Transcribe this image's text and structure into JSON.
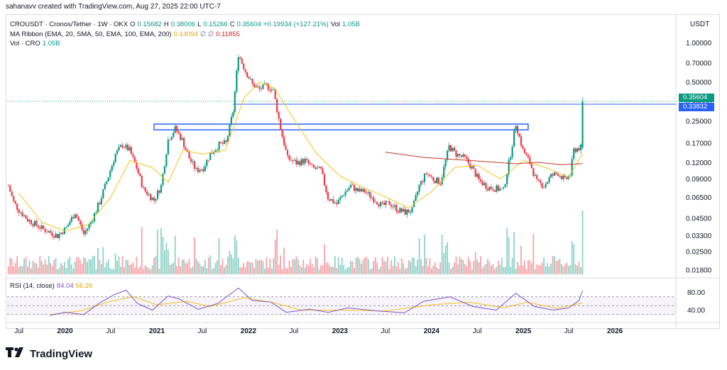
{
  "header": {
    "created_text": "sahanavv created with TradingView.com, Aug 27, 2025 22:00 UTC-7"
  },
  "legend": {
    "symbol": "CROUSDT · Cronos/Tether · 1W · OKX",
    "o_label": "O",
    "o_value": "0.15682",
    "h_label": "H",
    "h_value": "0.38006",
    "l_label": "L",
    "l_value": "0.15266",
    "c_label": "C",
    "c_value": "0.35604",
    "change": "+0.19934 (+127.21%)",
    "vol_label": "Vol",
    "vol_value": "1.05B",
    "ma_label": "MA Ribbon (EMA, 20, SMA, 50, EMA, 100, EMA, 200)",
    "ma_v1": "0.14094",
    "ma_sym": "∅ ∅",
    "ma_v2": "0.11855",
    "vol2_label": "Vol · CRO",
    "vol2_value": "1.05B",
    "rsi_label": "RSI (14, close)",
    "rsi_value": "84.04",
    "rsi_ma_value": "56.26"
  },
  "axis": {
    "currency": "USDT",
    "price_ticks": [
      "1.00000",
      "0.70000",
      "0.50000",
      "0.35000",
      "0.25000",
      "0.17000",
      "0.12000",
      "0.09000",
      "0.06500",
      "0.04500",
      "0.03300",
      "0.02500",
      "0.01800"
    ],
    "rsi_ticks": [
      "80.00",
      "40.00"
    ],
    "x_ticks": [
      "Jul",
      "2020",
      "Jul",
      "2021",
      "Jul",
      "2022",
      "Jul",
      "2023",
      "Jul",
      "2024",
      "Jul",
      "2025",
      "Jul",
      "2026"
    ],
    "last_price": "0.35604",
    "level_price": "0.33832"
  },
  "colors": {
    "up": "#089981",
    "down": "#f23645",
    "vol_up": "#8fd3c7",
    "vol_down": "#f5a3a9",
    "ma20": "#f0c419",
    "ma_red": "#c0392b",
    "level": "#2962ff",
    "rsi": "#7e57c2",
    "rsi_ma": "#f0c419"
  },
  "chart_data": {
    "type": "candlestick",
    "symbol": "CROUSDT",
    "exchange": "OKX",
    "interval": "1W",
    "y_scale": "log",
    "ylim": [
      0.0165,
      1.2
    ],
    "xlim": [
      "2019-05-15",
      "2026-09-01"
    ],
    "last_bar": {
      "date": "2025-08-25",
      "open": 0.15682,
      "high": 0.38006,
      "low": 0.15266,
      "close": 0.35604,
      "volume": "1.05B"
    },
    "close_path": [
      [
        "2019-05-20",
        0.08
      ],
      [
        "2019-06-10",
        0.06
      ],
      [
        "2019-07-01",
        0.052
      ],
      [
        "2019-08-05",
        0.044
      ],
      [
        "2019-09-09",
        0.04
      ],
      [
        "2019-10-07",
        0.037
      ],
      [
        "2019-11-04",
        0.035
      ],
      [
        "2019-12-02",
        0.033
      ],
      [
        "2020-01-06",
        0.038
      ],
      [
        "2020-02-10",
        0.05
      ],
      [
        "2020-03-16",
        0.034
      ],
      [
        "2020-04-13",
        0.042
      ],
      [
        "2020-05-18",
        0.06
      ],
      [
        "2020-06-22",
        0.095
      ],
      [
        "2020-07-20",
        0.14
      ],
      [
        "2020-08-17",
        0.165
      ],
      [
        "2020-09-14",
        0.15
      ],
      [
        "2020-10-12",
        0.11
      ],
      [
        "2020-11-09",
        0.075
      ],
      [
        "2020-12-21",
        0.062
      ],
      [
        "2021-01-18",
        0.08
      ],
      [
        "2021-02-15",
        0.18
      ],
      [
        "2021-03-15",
        0.22
      ],
      [
        "2021-04-12",
        0.18
      ],
      [
        "2021-05-10",
        0.13
      ],
      [
        "2021-06-07",
        0.105
      ],
      [
        "2021-07-05",
        0.11
      ],
      [
        "2021-08-02",
        0.14
      ],
      [
        "2021-09-06",
        0.165
      ],
      [
        "2021-10-04",
        0.17
      ],
      [
        "2021-11-01",
        0.3
      ],
      [
        "2021-11-22",
        0.82
      ],
      [
        "2021-12-20",
        0.61
      ],
      [
        "2022-01-17",
        0.48
      ],
      [
        "2022-02-14",
        0.44
      ],
      [
        "2022-03-14",
        0.47
      ],
      [
        "2022-04-11",
        0.43
      ],
      [
        "2022-05-09",
        0.22
      ],
      [
        "2022-06-06",
        0.13
      ],
      [
        "2022-07-11",
        0.12
      ],
      [
        "2022-08-15",
        0.125
      ],
      [
        "2022-09-12",
        0.11
      ],
      [
        "2022-10-17",
        0.105
      ],
      [
        "2022-11-14",
        0.065
      ],
      [
        "2022-12-19",
        0.058
      ],
      [
        "2023-01-16",
        0.07
      ],
      [
        "2023-02-13",
        0.08
      ],
      [
        "2023-03-13",
        0.073
      ],
      [
        "2023-04-10",
        0.072
      ],
      [
        "2023-05-15",
        0.064
      ],
      [
        "2023-06-19",
        0.056
      ],
      [
        "2023-07-17",
        0.059
      ],
      [
        "2023-08-21",
        0.052
      ],
      [
        "2023-09-18",
        0.05
      ],
      [
        "2023-10-16",
        0.052
      ],
      [
        "2023-11-13",
        0.08
      ],
      [
        "2023-12-11",
        0.1
      ],
      [
        "2024-01-08",
        0.09
      ],
      [
        "2024-02-05",
        0.085
      ],
      [
        "2024-03-11",
        0.16
      ],
      [
        "2024-04-08",
        0.14
      ],
      [
        "2024-05-13",
        0.13
      ],
      [
        "2024-06-10",
        0.11
      ],
      [
        "2024-07-08",
        0.088
      ],
      [
        "2024-08-12",
        0.078
      ],
      [
        "2024-09-16",
        0.076
      ],
      [
        "2024-10-14",
        0.074
      ],
      [
        "2024-11-11",
        0.14
      ],
      [
        "2024-12-02",
        0.24
      ],
      [
        "2024-12-30",
        0.15
      ],
      [
        "2025-01-27",
        0.12
      ],
      [
        "2025-02-24",
        0.085
      ],
      [
        "2025-03-24",
        0.08
      ],
      [
        "2025-04-21",
        0.095
      ],
      [
        "2025-05-19",
        0.1
      ],
      [
        "2025-06-16",
        0.088
      ],
      [
        "2025-07-07",
        0.098
      ],
      [
        "2025-07-21",
        0.15
      ],
      [
        "2025-08-04",
        0.155
      ],
      [
        "2025-08-18",
        0.157
      ],
      [
        "2025-08-25",
        0.356
      ]
    ],
    "ma20_path": [
      [
        "2019-07-01",
        0.07
      ],
      [
        "2019-10-01",
        0.042
      ],
      [
        "2020-01-01",
        0.036
      ],
      [
        "2020-04-01",
        0.04
      ],
      [
        "2020-07-01",
        0.065
      ],
      [
        "2020-09-15",
        0.125
      ],
      [
        "2020-12-15",
        0.11
      ],
      [
        "2021-02-15",
        0.085
      ],
      [
        "2021-04-15",
        0.15
      ],
      [
        "2021-07-01",
        0.14
      ],
      [
        "2021-10-01",
        0.15
      ],
      [
        "2021-12-15",
        0.38
      ],
      [
        "2022-02-15",
        0.5
      ],
      [
        "2022-04-15",
        0.45
      ],
      [
        "2022-07-01",
        0.26
      ],
      [
        "2022-10-01",
        0.14
      ],
      [
        "2023-01-01",
        0.095
      ],
      [
        "2023-04-01",
        0.078
      ],
      [
        "2023-07-01",
        0.066
      ],
      [
        "2023-10-01",
        0.054
      ],
      [
        "2024-01-01",
        0.072
      ],
      [
        "2024-04-01",
        0.11
      ],
      [
        "2024-07-01",
        0.115
      ],
      [
        "2024-10-01",
        0.09
      ],
      [
        "2025-01-01",
        0.125
      ],
      [
        "2025-04-01",
        0.11
      ],
      [
        "2025-07-01",
        0.093
      ],
      [
        "2025-08-25",
        0.14094
      ]
    ],
    "ma_red_path": [
      [
        "2023-07-01",
        0.145
      ],
      [
        "2023-12-01",
        0.132
      ],
      [
        "2024-06-01",
        0.125
      ],
      [
        "2024-12-01",
        0.118
      ],
      [
        "2025-03-01",
        0.121
      ],
      [
        "2025-06-01",
        0.116
      ],
      [
        "2025-08-25",
        0.11855
      ]
    ],
    "resistance_zone": {
      "start": "2020-12-21",
      "end": "2025-01-20",
      "low": 0.215,
      "high": 0.238
    },
    "horizontal_level": {
      "start": "2021-11-01",
      "value": 0.33832
    },
    "rsi": {
      "ylim": [
        20,
        100
      ],
      "bands": [
        30,
        50,
        70
      ],
      "path": [
        [
          "2019-11-01",
          28
        ],
        [
          "2020-01-01",
          35
        ],
        [
          "2020-03-15",
          30
        ],
        [
          "2020-05-15",
          55
        ],
        [
          "2020-07-15",
          75
        ],
        [
          "2020-09-01",
          85
        ],
        [
          "2020-10-15",
          55
        ],
        [
          "2020-12-15",
          40
        ],
        [
          "2021-02-15",
          72
        ],
        [
          "2021-04-01",
          65
        ],
        [
          "2021-06-15",
          42
        ],
        [
          "2021-09-01",
          55
        ],
        [
          "2021-11-22",
          90
        ],
        [
          "2022-01-15",
          62
        ],
        [
          "2022-04-01",
          58
        ],
        [
          "2022-06-01",
          35
        ],
        [
          "2022-09-01",
          42
        ],
        [
          "2022-11-15",
          35
        ],
        [
          "2023-02-01",
          45
        ],
        [
          "2023-06-01",
          38
        ],
        [
          "2023-09-15",
          34
        ],
        [
          "2023-12-01",
          60
        ],
        [
          "2024-03-15",
          70
        ],
        [
          "2024-06-15",
          48
        ],
        [
          "2024-09-15",
          40
        ],
        [
          "2024-12-02",
          78
        ],
        [
          "2025-02-15",
          48
        ],
        [
          "2025-05-01",
          40
        ],
        [
          "2025-07-01",
          45
        ],
        [
          "2025-08-11",
          62
        ],
        [
          "2025-08-25",
          84.04
        ]
      ],
      "ma_path": [
        [
          "2019-11-01",
          30
        ],
        [
          "2020-03-01",
          38
        ],
        [
          "2020-07-01",
          60
        ],
        [
          "2020-10-01",
          70
        ],
        [
          "2021-01-01",
          52
        ],
        [
          "2021-05-01",
          60
        ],
        [
          "2021-08-01",
          48
        ],
        [
          "2021-12-15",
          68
        ],
        [
          "2022-04-01",
          58
        ],
        [
          "2022-08-01",
          40
        ],
        [
          "2023-01-01",
          40
        ],
        [
          "2023-07-01",
          38
        ],
        [
          "2024-01-01",
          52
        ],
        [
          "2024-06-01",
          58
        ],
        [
          "2024-10-15",
          45
        ],
        [
          "2025-01-15",
          58
        ],
        [
          "2025-05-15",
          44
        ],
        [
          "2025-08-25",
          56.26
        ]
      ]
    }
  }
}
